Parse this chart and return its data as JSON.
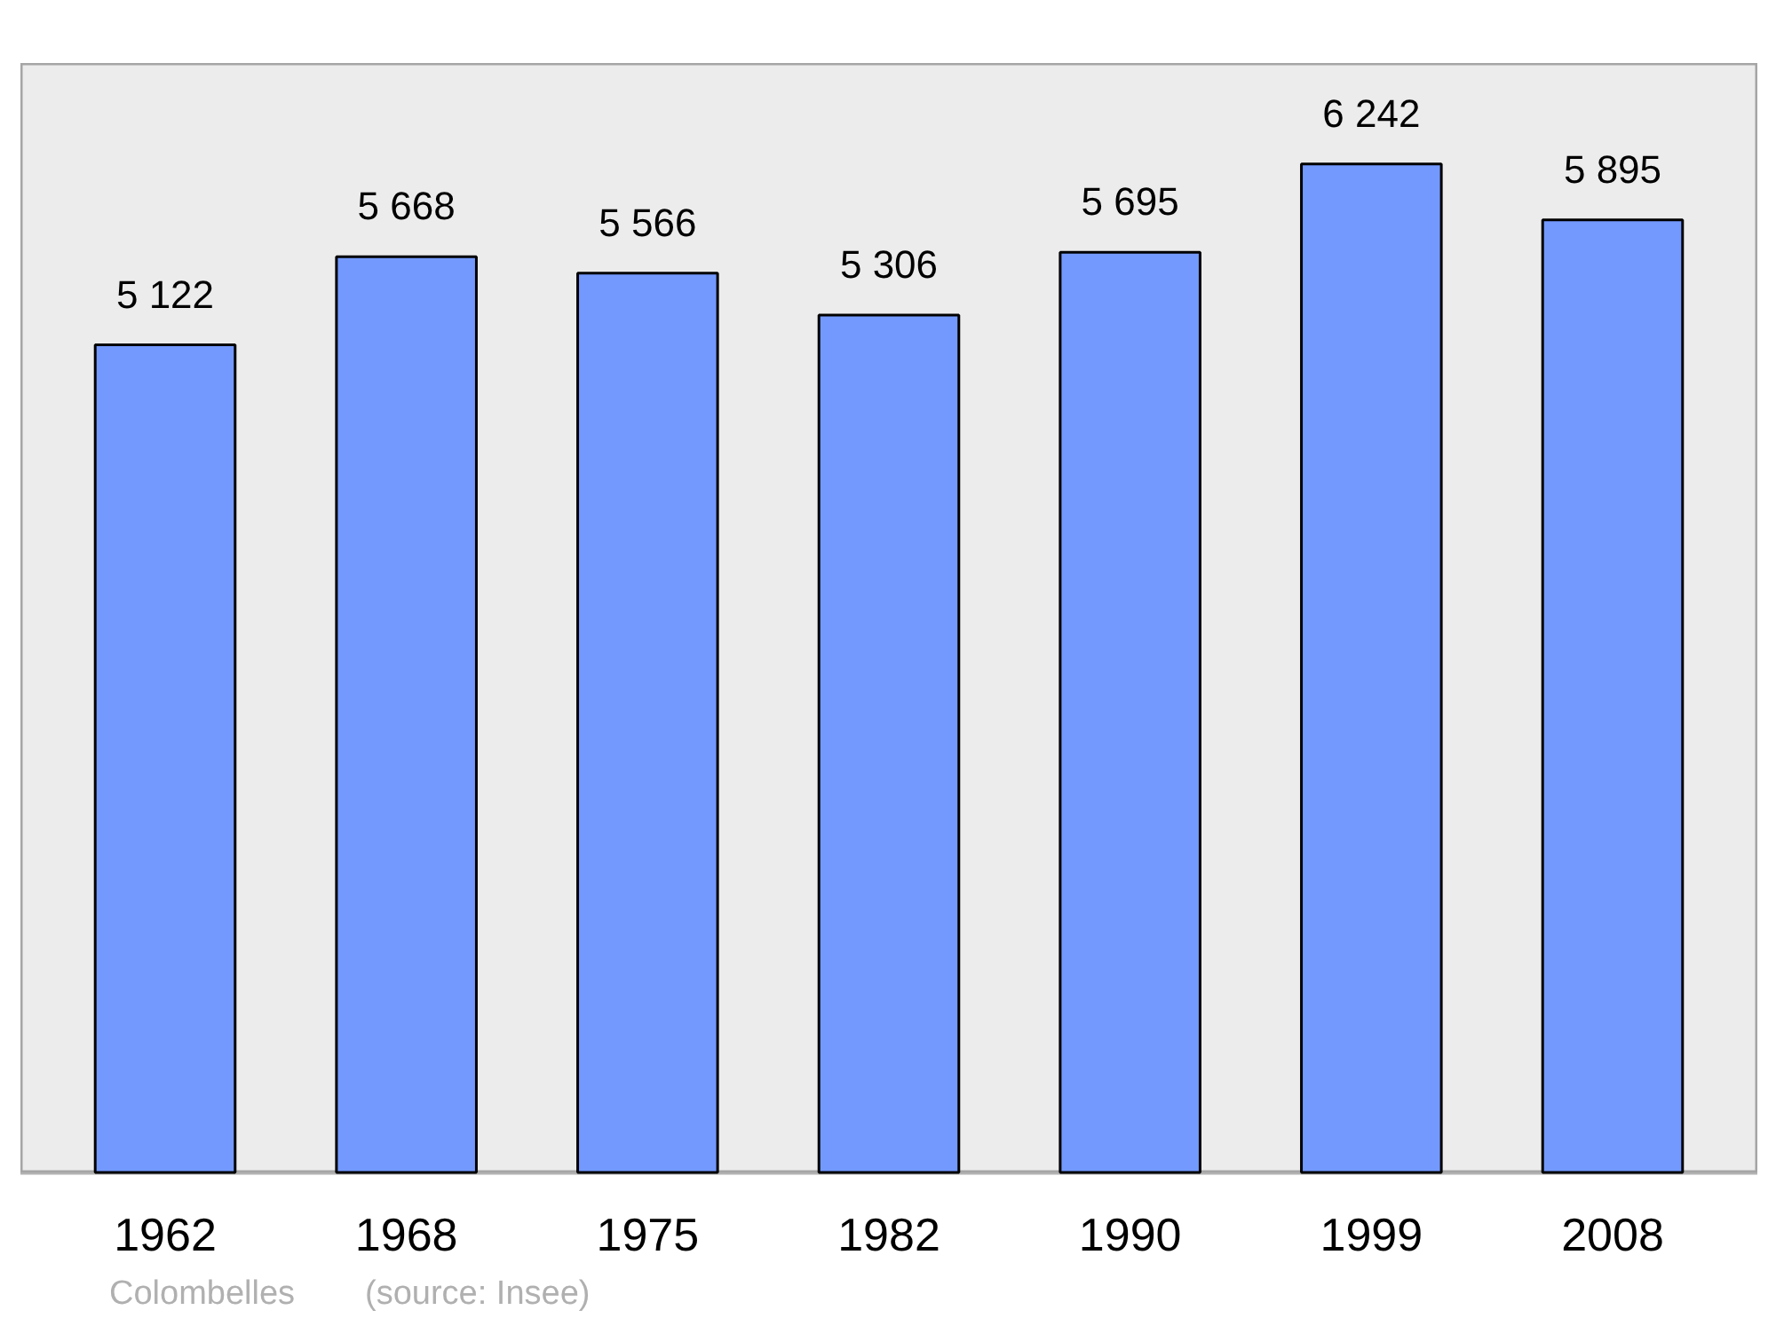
{
  "chart_data": {
    "type": "bar",
    "categories": [
      "1962",
      "1968",
      "1975",
      "1982",
      "1990",
      "1999",
      "2008"
    ],
    "values": [
      5122,
      5668,
      5566,
      5306,
      5695,
      6242,
      5895
    ],
    "value_labels": [
      "5 122",
      "5 668",
      "5 566",
      "5 306",
      "5 695",
      "6 242",
      "5 895"
    ],
    "color": "#7399ff",
    "grid": false,
    "annotations": [
      "Colombelles",
      "(source: Insee)"
    ]
  }
}
